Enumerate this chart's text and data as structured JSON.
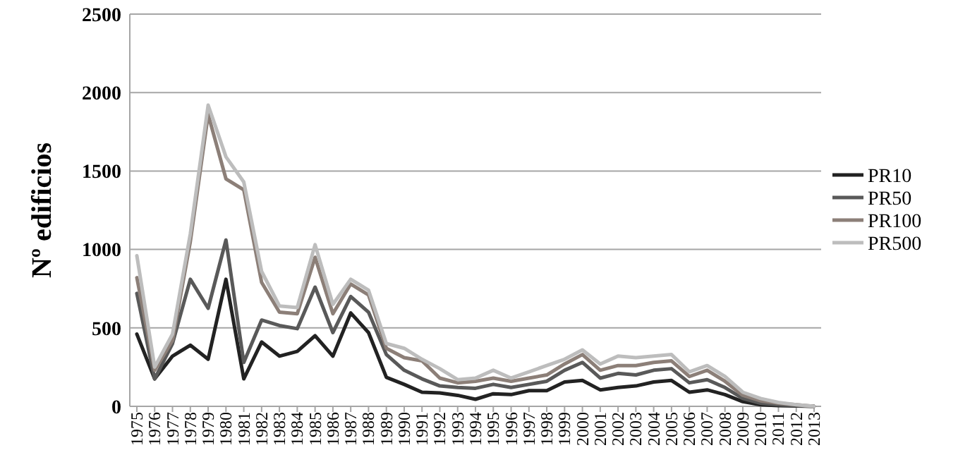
{
  "chart_data": {
    "type": "line",
    "ylabel": "Nº edificios",
    "categories": [
      "1975",
      "1976",
      "1977",
      "1978",
      "1979",
      "1980",
      "1981",
      "1982",
      "1983",
      "1984",
      "1985",
      "1986",
      "1987",
      "1988",
      "1989",
      "1990",
      "1991",
      "1992",
      "1993",
      "1994",
      "1995",
      "1996",
      "1997",
      "1998",
      "1999",
      "2000",
      "2001",
      "2002",
      "2003",
      "2004",
      "2005",
      "2006",
      "2007",
      "2008",
      "2009",
      "2010",
      "2011",
      "2012",
      "2013"
    ],
    "series": [
      {
        "name": "PR10",
        "color": "#222222",
        "values": [
          460,
          175,
          320,
          390,
          300,
          810,
          175,
          410,
          320,
          350,
          450,
          320,
          595,
          470,
          185,
          140,
          90,
          85,
          70,
          45,
          80,
          75,
          100,
          100,
          155,
          165,
          105,
          120,
          130,
          155,
          165,
          90,
          105,
          75,
          30,
          10,
          5,
          2,
          0
        ]
      },
      {
        "name": "PR50",
        "color": "#595959",
        "values": [
          720,
          175,
          400,
          810,
          625,
          1060,
          280,
          550,
          515,
          495,
          760,
          470,
          700,
          600,
          330,
          230,
          175,
          130,
          120,
          115,
          140,
          120,
          140,
          160,
          230,
          280,
          180,
          210,
          200,
          230,
          240,
          150,
          170,
          120,
          50,
          20,
          10,
          5,
          0
        ]
      },
      {
        "name": "PR100",
        "color": "#8c7f78",
        "values": [
          820,
          230,
          420,
          1050,
          1860,
          1450,
          1380,
          790,
          600,
          590,
          950,
          590,
          780,
          710,
          370,
          310,
          290,
          180,
          150,
          160,
          180,
          160,
          180,
          200,
          270,
          330,
          230,
          260,
          260,
          280,
          290,
          190,
          230,
          160,
          70,
          35,
          20,
          10,
          0
        ]
      },
      {
        "name": "PR500",
        "color": "#bdbdbd",
        "values": [
          960,
          250,
          460,
          1100,
          1920,
          1590,
          1430,
          860,
          640,
          630,
          1030,
          650,
          810,
          740,
          400,
          370,
          300,
          240,
          170,
          180,
          230,
          180,
          220,
          260,
          300,
          360,
          270,
          320,
          310,
          320,
          330,
          220,
          260,
          190,
          90,
          50,
          25,
          10,
          0
        ]
      }
    ],
    "ylim": [
      0,
      2500
    ],
    "yticks": [
      0,
      500,
      1000,
      1500,
      2000,
      2500
    ],
    "grid": "y",
    "legend": "right",
    "marker": "none",
    "line_style": "solid"
  }
}
